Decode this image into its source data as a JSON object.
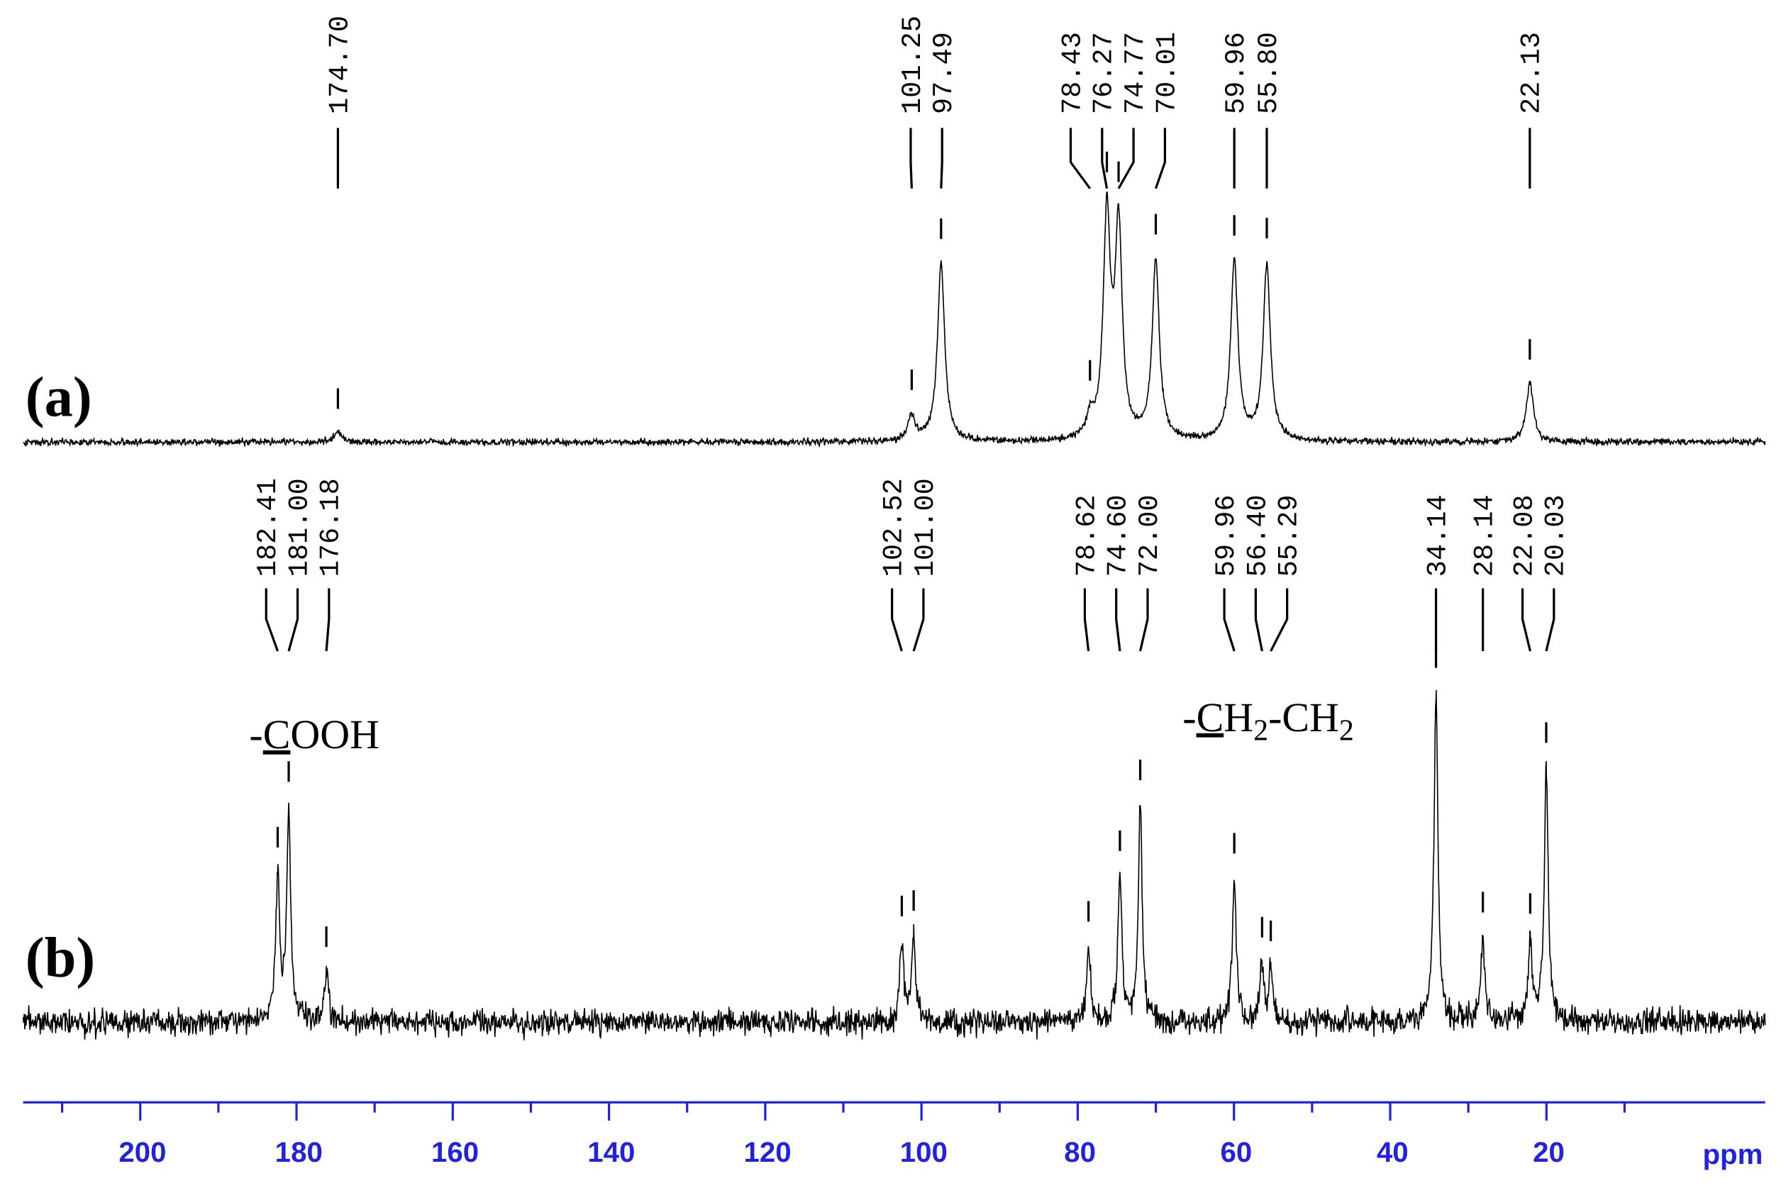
{
  "chart_data": {
    "type": "nmr",
    "xlabel": "ppm",
    "xlim": [
      215,
      -8
    ],
    "xticks": [
      200,
      180,
      160,
      140,
      120,
      100,
      80,
      60,
      40,
      20
    ],
    "xminorticks": [
      210,
      190,
      170,
      150,
      130,
      110,
      90,
      70,
      50,
      30,
      10
    ],
    "axis_color": "#2222dd",
    "series": [
      {
        "name": "(a)",
        "color": "#000000",
        "peaks": [
          {
            "value": 174.7,
            "label": "174.70"
          },
          {
            "value": 101.25,
            "label": "101.25"
          },
          {
            "value": 97.49,
            "label": "97.49"
          },
          {
            "value": 78.43,
            "label": "78.43"
          },
          {
            "value": 76.27,
            "label": "76.27"
          },
          {
            "value": 74.77,
            "label": "74.77"
          },
          {
            "value": 70.01,
            "label": "70.01"
          },
          {
            "value": 59.96,
            "label": "59.96"
          },
          {
            "value": 55.8,
            "label": "55.80"
          },
          {
            "value": 22.13,
            "label": "22.13"
          }
        ],
        "heights": [
          9,
          22,
          157,
          17,
          192,
          182,
          157,
          157,
          155,
          52
        ]
      },
      {
        "name": "(b)",
        "color": "#000000",
        "peaks": [
          {
            "value": 182.41,
            "label": "182.41"
          },
          {
            "value": 181,
            "label": "181.00"
          },
          {
            "value": 176.18,
            "label": "176.18"
          },
          {
            "value": 102.52,
            "label": "102.52"
          },
          {
            "value": 101,
            "label": "101.00"
          },
          {
            "value": 78.62,
            "label": "78.62"
          },
          {
            "value": 74.6,
            "label": "74.60"
          },
          {
            "value": 72,
            "label": "72.00"
          },
          {
            "value": 59.96,
            "label": "59.96"
          },
          {
            "value": 56.4,
            "label": "56.40"
          },
          {
            "value": 55.29,
            "label": "55.29"
          },
          {
            "value": 34.14,
            "label": "34.14"
          },
          {
            "value": 28.14,
            "label": "28.14"
          },
          {
            "value": 22.08,
            "label": "22.08"
          },
          {
            "value": 20.03,
            "label": "20.03"
          }
        ],
        "heights": [
          125,
          185,
          45,
          70,
          75,
          67,
          127,
          190,
          127,
          50,
          47,
          290,
          75,
          70,
          223
        ]
      }
    ],
    "annotations": [
      {
        "parts": [
          "-",
          "C",
          "OOH"
        ]
      },
      {
        "parts": [
          "-",
          "C",
          "H",
          "2",
          "-CH",
          "2"
        ]
      }
    ]
  }
}
